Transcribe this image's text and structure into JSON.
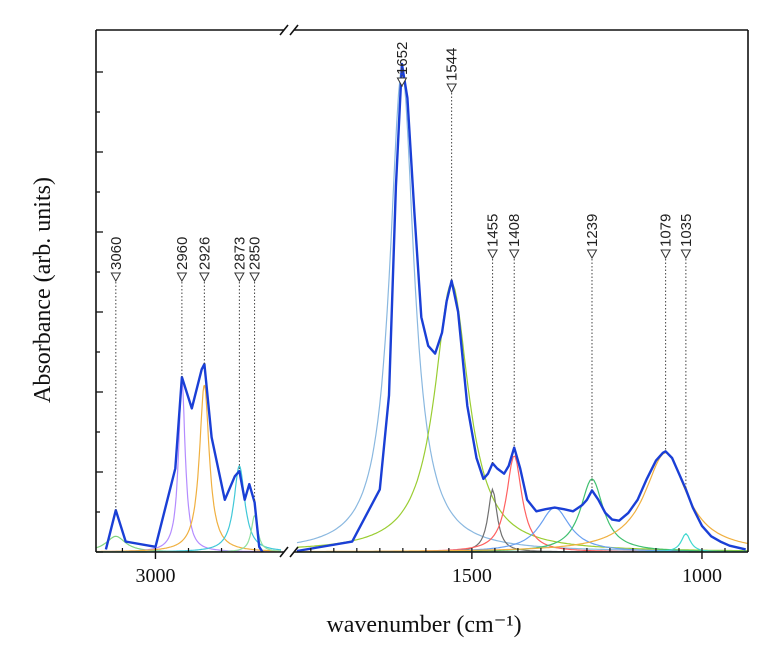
{
  "chart_data": {
    "type": "line",
    "title": "",
    "xlabel": "wavenumber (cm⁻¹)",
    "ylabel": "Absorbance (arb. units)",
    "x_reversed": true,
    "broken_x_axis": true,
    "xlim_segments": [
      [
        3090,
        2810
      ],
      [
        1880,
        900
      ]
    ],
    "x_ticks": [
      {
        "value": 3000,
        "label": "3000"
      },
      {
        "value": 1500,
        "label": "1500"
      },
      {
        "value": 1000,
        "label": "1000"
      }
    ],
    "ylim": [
      0,
      1.0
    ],
    "grid": false,
    "legend": "none",
    "y_tick_labels": false,
    "peak_labels": [
      {
        "wavenumber": 3060,
        "label": "3060"
      },
      {
        "wavenumber": 2960,
        "label": "2960"
      },
      {
        "wavenumber": 2926,
        "label": "2926"
      },
      {
        "wavenumber": 2873,
        "label": "2873"
      },
      {
        "wavenumber": 2850,
        "label": "2850"
      },
      {
        "wavenumber": 1652,
        "label": "1652"
      },
      {
        "wavenumber": 1544,
        "label": "1544"
      },
      {
        "wavenumber": 1455,
        "label": "1455"
      },
      {
        "wavenumber": 1408,
        "label": "1408"
      },
      {
        "wavenumber": 1239,
        "label": "1239"
      },
      {
        "wavenumber": 1079,
        "label": "1079"
      },
      {
        "wavenumber": 1035,
        "label": "1035"
      }
    ],
    "components": [
      {
        "center": 3060,
        "height": 0.03,
        "width": 18,
        "color": "#7fd37f"
      },
      {
        "center": 2960,
        "height": 0.33,
        "width": 6,
        "color": "#b48cff"
      },
      {
        "center": 2926,
        "height": 0.32,
        "width": 9,
        "color": "#f0b040"
      },
      {
        "center": 2873,
        "height": 0.165,
        "width": 10,
        "color": "#40c8d8"
      },
      {
        "center": 2850,
        "height": 0.07,
        "width": 6,
        "color": "#90e0a0"
      },
      {
        "center": 1652,
        "height": 0.925,
        "width": 32,
        "color": "#8ab8e0"
      },
      {
        "center": 1544,
        "height": 0.515,
        "width": 45,
        "color": "#9acd32"
      },
      {
        "center": 1455,
        "height": 0.12,
        "width": 12,
        "color": "#707070"
      },
      {
        "center": 1408,
        "height": 0.185,
        "width": 20,
        "color": "#ff6060"
      },
      {
        "center": 1320,
        "height": 0.085,
        "width": 40,
        "color": "#6aa0f0"
      },
      {
        "center": 1239,
        "height": 0.14,
        "width": 30,
        "color": "#40c070"
      },
      {
        "center": 1079,
        "height": 0.19,
        "width": 55,
        "color": "#f0b040"
      },
      {
        "center": 1035,
        "height": 0.035,
        "width": 12,
        "color": "#40d8d0"
      }
    ],
    "series": [
      {
        "role": "measured",
        "color": "#1a3fd6",
        "segments": [
          {
            "x": [
              3075,
              3060,
              3045,
              3000,
              2970,
              2960,
              2945,
              2930,
              2926,
              2915,
              2895,
              2880,
              2873,
              2865,
              2858,
              2850,
              2843,
              2838
            ],
            "y": [
              0.005,
              0.08,
              0.02,
              0.01,
              0.16,
              0.335,
              0.275,
              0.35,
              0.36,
              0.22,
              0.1,
              0.145,
              0.155,
              0.1,
              0.13,
              0.095,
              0.01,
              0.0
            ]
          },
          {
            "x": [
              1880,
              1760,
              1700,
              1680,
              1665,
              1652,
              1640,
              1625,
              1610,
              1595,
              1580,
              1565,
              1555,
              1544,
              1530,
              1510,
              1490,
              1475,
              1465,
              1455,
              1445,
              1430,
              1420,
              1408,
              1395,
              1380,
              1360,
              1340,
              1320,
              1300,
              1280,
              1260,
              1250,
              1239,
              1225,
              1210,
              1195,
              1180,
              1160,
              1140,
              1120,
              1100,
              1085,
              1079,
              1065,
              1050,
              1035,
              1020,
              1000,
              980,
              960,
              940,
              920,
              905
            ],
            "y": [
              0.002,
              0.02,
              0.12,
              0.3,
              0.7,
              0.935,
              0.87,
              0.65,
              0.45,
              0.395,
              0.38,
              0.42,
              0.48,
              0.52,
              0.46,
              0.28,
              0.18,
              0.14,
              0.15,
              0.17,
              0.16,
              0.15,
              0.165,
              0.2,
              0.16,
              0.1,
              0.078,
              0.082,
              0.085,
              0.082,
              0.078,
              0.09,
              0.1,
              0.118,
              0.1,
              0.075,
              0.062,
              0.06,
              0.075,
              0.1,
              0.14,
              0.175,
              0.19,
              0.193,
              0.18,
              0.15,
              0.12,
              0.085,
              0.05,
              0.03,
              0.02,
              0.012,
              0.008,
              0.005
            ]
          }
        ]
      }
    ]
  }
}
